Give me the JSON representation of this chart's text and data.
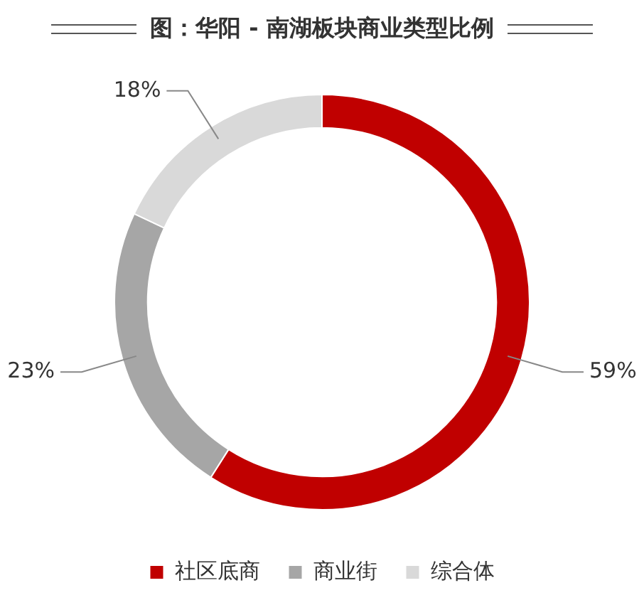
{
  "chart_data": {
    "type": "donut",
    "title": "图：华阳 - 南湖板块商业类型比例",
    "categories": [
      "社区底商",
      "商业街",
      "综合体"
    ],
    "values": [
      59,
      23,
      18
    ],
    "colors": [
      "#c00000",
      "#a6a6a6",
      "#d9d9d9"
    ],
    "value_labels": [
      "59%",
      "23%",
      "18%"
    ],
    "legend": "bottom"
  }
}
